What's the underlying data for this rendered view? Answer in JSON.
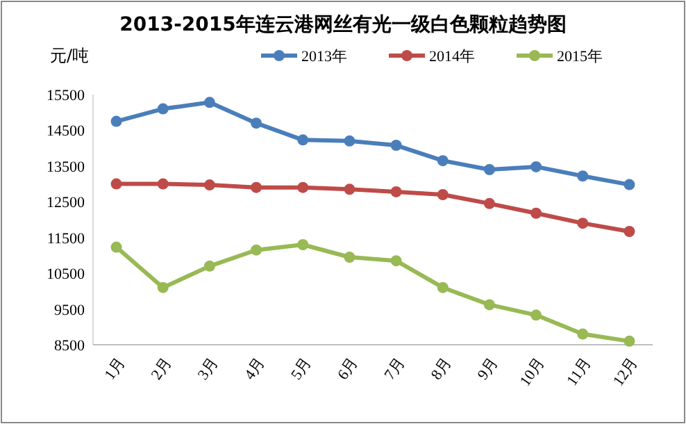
{
  "chart_data": {
    "type": "line",
    "title": "2013-2015年连云港网丝有光一级白色颗粒趋势图",
    "ylabel": "元/吨",
    "categories": [
      "1月",
      "2月",
      "3月",
      "4月",
      "5月",
      "6月",
      "7月",
      "8月",
      "9月",
      "10月",
      "11月",
      "12月"
    ],
    "series": [
      {
        "name": "2013年",
        "color": "#4a7ebb",
        "values": [
          14750,
          15100,
          15280,
          14700,
          14230,
          14200,
          14080,
          13650,
          13400,
          13480,
          13220,
          12980
        ]
      },
      {
        "name": "2014年",
        "color": "#be4b48",
        "values": [
          13000,
          13000,
          12970,
          12900,
          12900,
          12850,
          12780,
          12700,
          12450,
          12180,
          11900,
          11670
        ]
      },
      {
        "name": "2015年",
        "color": "#98b954",
        "values": [
          11230,
          10100,
          10700,
          11150,
          11300,
          10950,
          10850,
          10100,
          9620,
          9330,
          8800,
          8600
        ]
      }
    ],
    "ylim": [
      8500,
      15500
    ],
    "yticks": [
      8500,
      9500,
      10500,
      11500,
      12500,
      13500,
      14500,
      15500
    ],
    "legend": "top",
    "marker": "circle",
    "line_style": "solid",
    "grid": false
  }
}
